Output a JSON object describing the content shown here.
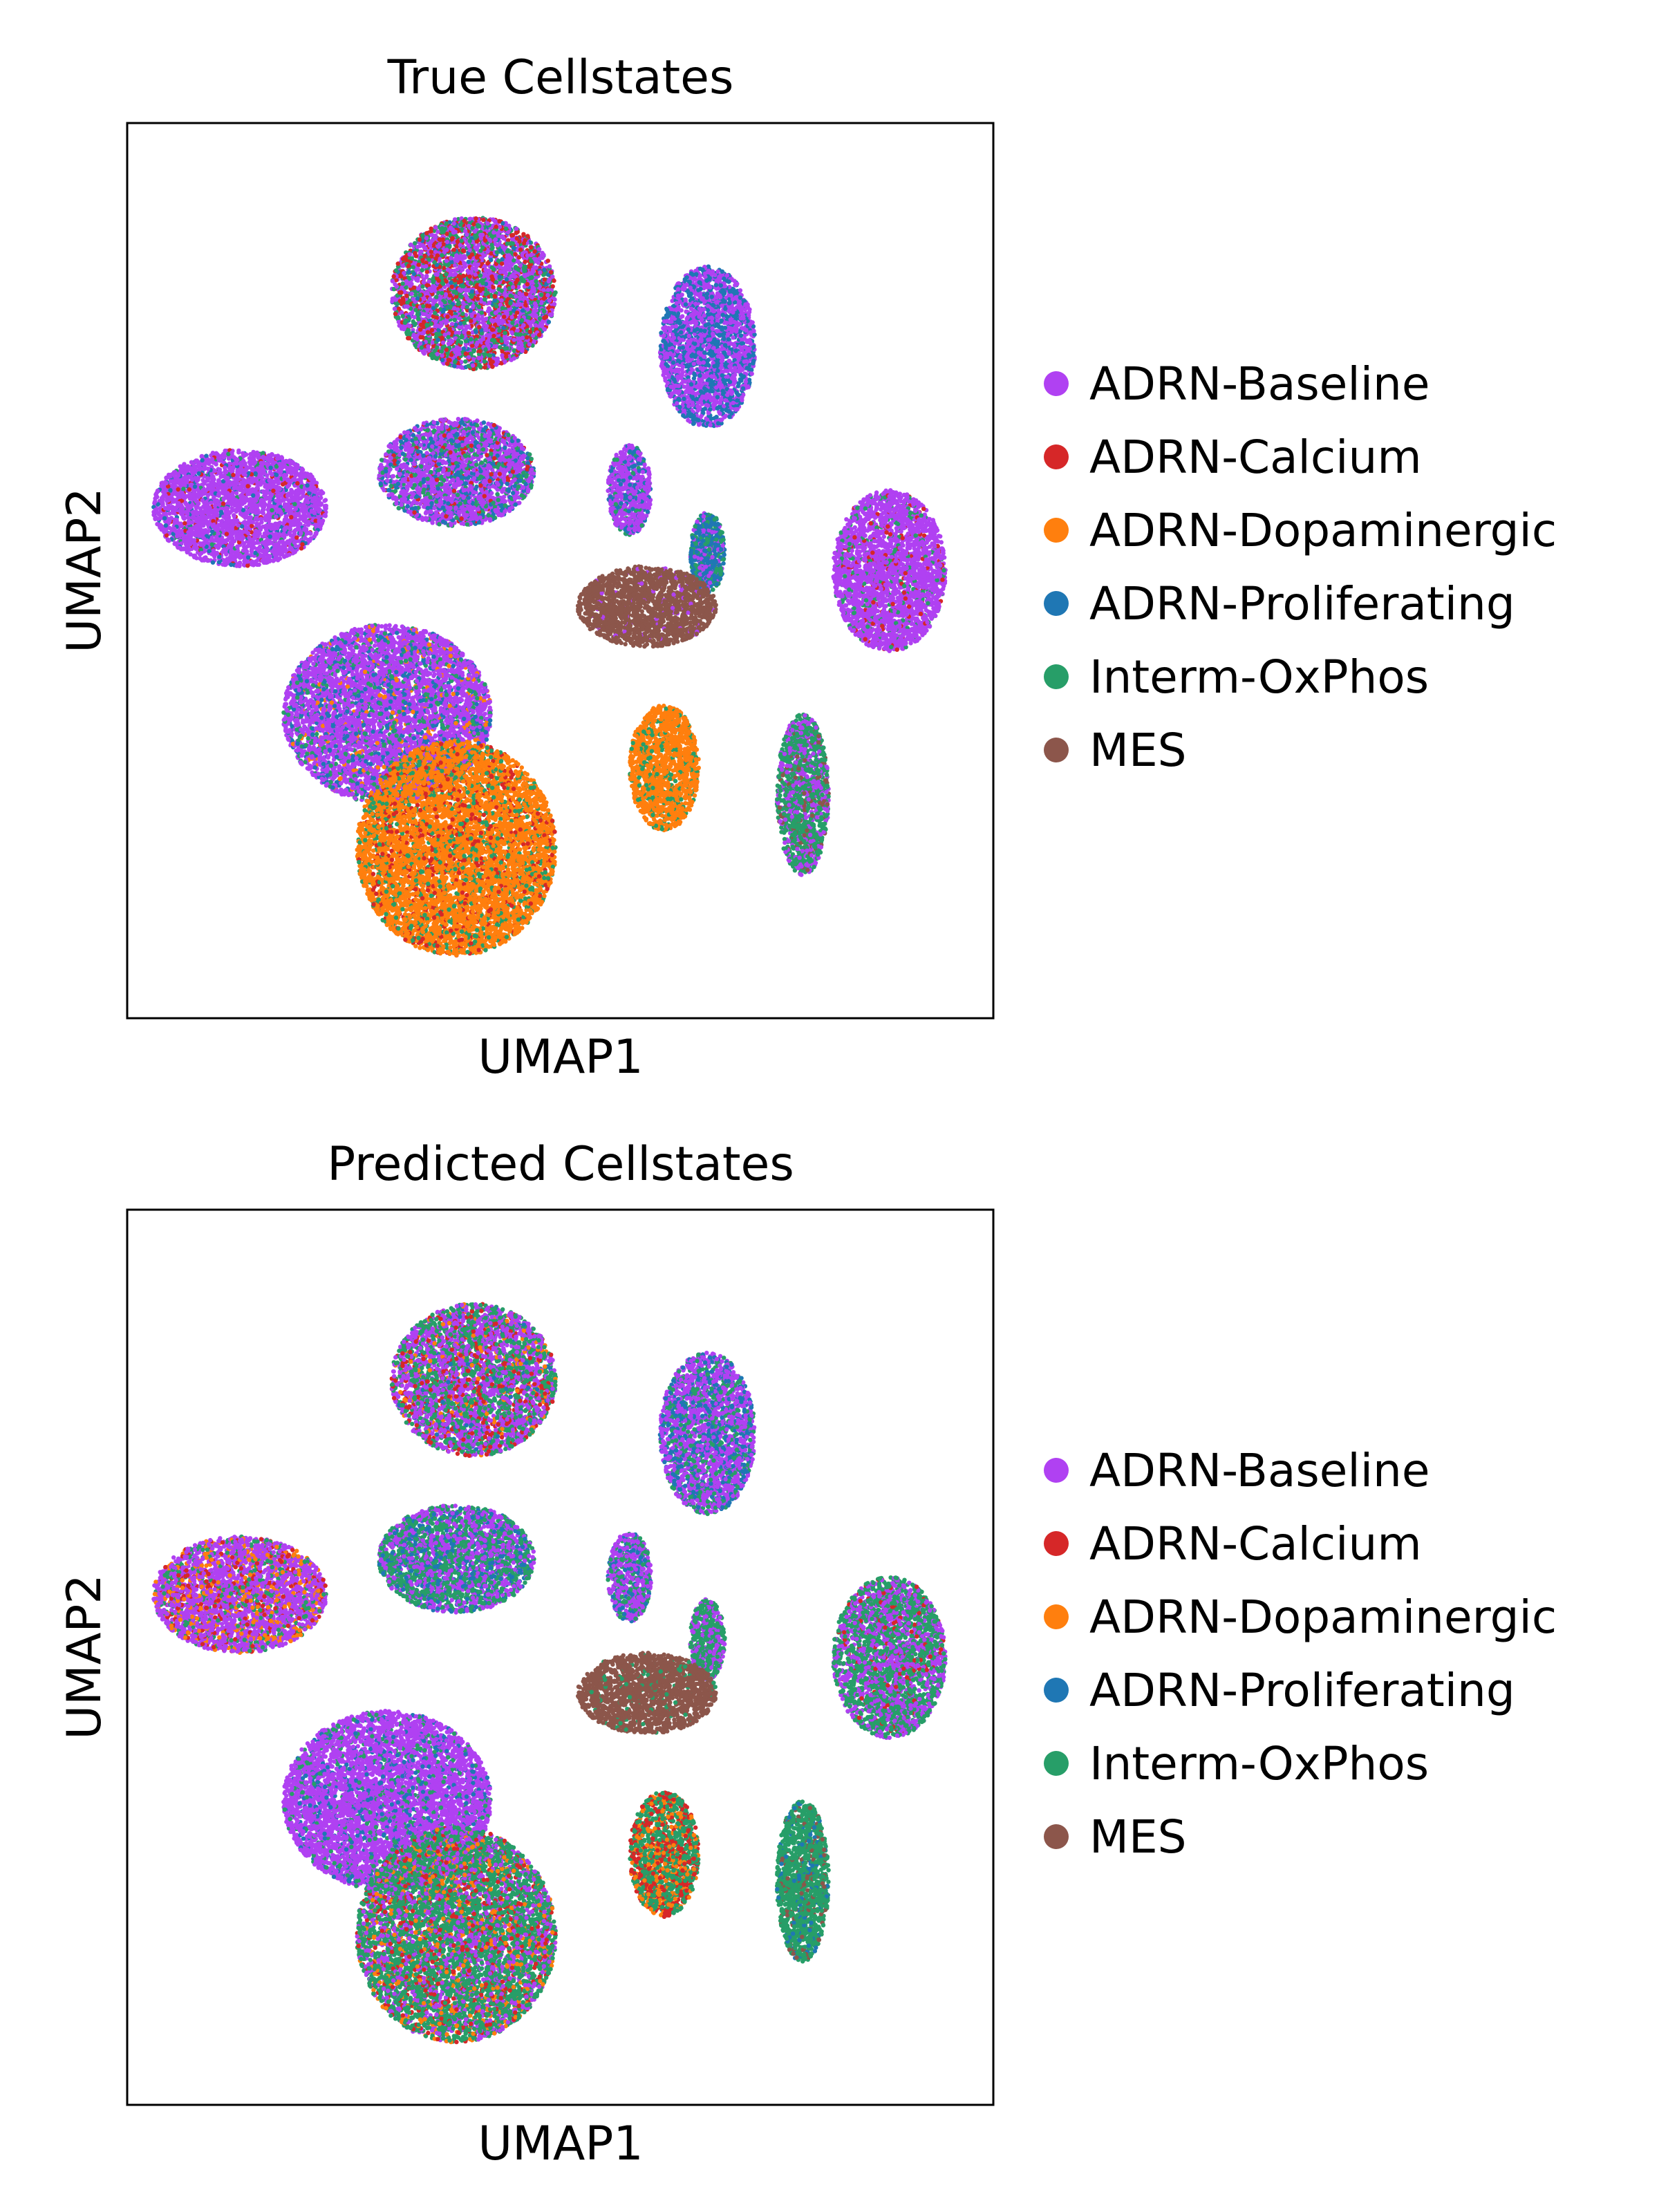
{
  "chart_data": [
    {
      "type": "scatter",
      "title": "True Cellstates",
      "xlabel": "UMAP1",
      "ylabel": "UMAP2",
      "ticks": "none",
      "grid": false,
      "legend_position": "right",
      "legend": [
        "ADRN-Baseline",
        "ADRN-Calcium",
        "ADRN-Dopaminergic",
        "ADRN-Proliferating",
        "Interm-OxPhos",
        "MES"
      ],
      "colors": {
        "ADRN-Baseline": "#b041f2",
        "ADRN-Calcium": "#d62728",
        "ADRN-Dopaminergic": "#ff7f0e",
        "ADRN-Proliferating": "#1f77b4",
        "Interm-OxPhos": "#279e68",
        "MES": "#8c564b"
      },
      "clusters": [
        {
          "x": 0.4,
          "y": 0.19,
          "mix": {
            "ADRN-Baseline": 0.45,
            "ADRN-Calcium": 0.25,
            "Interm-OxPhos": 0.25,
            "ADRN-Proliferating": 0.05
          }
        },
        {
          "x": 0.67,
          "y": 0.25,
          "mix": {
            "ADRN-Baseline": 0.55,
            "ADRN-Proliferating": 0.45
          }
        },
        {
          "x": 0.13,
          "y": 0.43,
          "mix": {
            "ADRN-Baseline": 0.85,
            "ADRN-Proliferating": 0.07,
            "ADRN-Calcium": 0.05,
            "Interm-OxPhos": 0.03
          }
        },
        {
          "x": 0.38,
          "y": 0.39,
          "mix": {
            "ADRN-Baseline": 0.6,
            "ADRN-Proliferating": 0.2,
            "Interm-OxPhos": 0.15,
            "ADRN-Calcium": 0.05
          }
        },
        {
          "x": 0.58,
          "y": 0.41,
          "mix": {
            "ADRN-Baseline": 0.7,
            "ADRN-Proliferating": 0.2,
            "Interm-OxPhos": 0.1
          }
        },
        {
          "x": 0.67,
          "y": 0.48,
          "mix": {
            "ADRN-Proliferating": 0.5,
            "Interm-OxPhos": 0.3,
            "ADRN-Baseline": 0.2
          }
        },
        {
          "x": 0.88,
          "y": 0.5,
          "mix": {
            "ADRN-Baseline": 0.85,
            "Interm-OxPhos": 0.1,
            "ADRN-Calcium": 0.05
          }
        },
        {
          "x": 0.3,
          "y": 0.66,
          "mix": {
            "ADRN-Baseline": 0.7,
            "ADRN-Proliferating": 0.15,
            "Interm-OxPhos": 0.1,
            "ADRN-Dopaminergic": 0.05
          }
        },
        {
          "x": 0.38,
          "y": 0.81,
          "mix": {
            "ADRN-Dopaminergic": 0.75,
            "Interm-OxPhos": 0.15,
            "ADRN-Calcium": 0.1
          }
        },
        {
          "x": 0.62,
          "y": 0.72,
          "mix": {
            "ADRN-Dopaminergic": 0.85,
            "Interm-OxPhos": 0.15
          }
        },
        {
          "x": 0.6,
          "y": 0.54,
          "mix": {
            "MES": 0.95,
            "ADRN-Baseline": 0.05
          }
        },
        {
          "x": 0.78,
          "y": 0.75,
          "mix": {
            "Interm-OxPhos": 0.6,
            "ADRN-Baseline": 0.3,
            "MES": 0.1
          }
        }
      ]
    },
    {
      "type": "scatter",
      "title": "Predicted Cellstates",
      "xlabel": "UMAP1",
      "ylabel": "UMAP2",
      "ticks": "none",
      "grid": false,
      "legend_position": "right",
      "legend": [
        "ADRN-Baseline",
        "ADRN-Calcium",
        "ADRN-Dopaminergic",
        "ADRN-Proliferating",
        "Interm-OxPhos",
        "MES"
      ],
      "colors": {
        "ADRN-Baseline": "#b041f2",
        "ADRN-Calcium": "#d62728",
        "ADRN-Dopaminergic": "#ff7f0e",
        "ADRN-Proliferating": "#1f77b4",
        "Interm-OxPhos": "#279e68",
        "MES": "#8c564b"
      },
      "clusters": [
        {
          "x": 0.4,
          "y": 0.19,
          "mix": {
            "ADRN-Baseline": 0.45,
            "Interm-OxPhos": 0.35,
            "ADRN-Calcium": 0.12,
            "ADRN-Dopaminergic": 0.05,
            "ADRN-Proliferating": 0.03
          }
        },
        {
          "x": 0.67,
          "y": 0.25,
          "mix": {
            "ADRN-Baseline": 0.55,
            "ADRN-Proliferating": 0.25,
            "Interm-OxPhos": 0.2
          }
        },
        {
          "x": 0.13,
          "y": 0.43,
          "mix": {
            "ADRN-Baseline": 0.6,
            "ADRN-Dopaminergic": 0.15,
            "Interm-OxPhos": 0.15,
            "ADRN-Calcium": 0.1
          }
        },
        {
          "x": 0.38,
          "y": 0.39,
          "mix": {
            "Interm-OxPhos": 0.45,
            "ADRN-Baseline": 0.4,
            "ADRN-Proliferating": 0.15
          }
        },
        {
          "x": 0.58,
          "y": 0.41,
          "mix": {
            "ADRN-Baseline": 0.55,
            "Interm-OxPhos": 0.3,
            "ADRN-Proliferating": 0.15
          }
        },
        {
          "x": 0.67,
          "y": 0.48,
          "mix": {
            "Interm-OxPhos": 0.6,
            "ADRN-Baseline": 0.4
          }
        },
        {
          "x": 0.88,
          "y": 0.5,
          "mix": {
            "Interm-OxPhos": 0.55,
            "ADRN-Baseline": 0.4,
            "ADRN-Calcium": 0.05
          }
        },
        {
          "x": 0.3,
          "y": 0.66,
          "mix": {
            "ADRN-Baseline": 0.8,
            "Interm-OxPhos": 0.1,
            "ADRN-Proliferating": 0.1
          }
        },
        {
          "x": 0.38,
          "y": 0.81,
          "mix": {
            "Interm-OxPhos": 0.55,
            "ADRN-Baseline": 0.25,
            "ADRN-Dopaminergic": 0.1,
            "ADRN-Calcium": 0.1
          }
        },
        {
          "x": 0.62,
          "y": 0.72,
          "mix": {
            "Interm-OxPhos": 0.5,
            "ADRN-Calcium": 0.3,
            "ADRN-Dopaminergic": 0.2
          }
        },
        {
          "x": 0.6,
          "y": 0.54,
          "mix": {
            "MES": 0.95,
            "Interm-OxPhos": 0.05
          }
        },
        {
          "x": 0.78,
          "y": 0.75,
          "mix": {
            "Interm-OxPhos": 0.8,
            "ADRN-Proliferating": 0.1,
            "MES": 0.1
          }
        }
      ]
    }
  ]
}
